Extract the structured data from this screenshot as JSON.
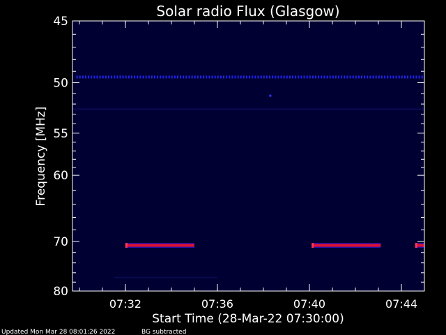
{
  "chart_data": {
    "type": "heatmap",
    "title": "Solar radio Flux (Glasgow)",
    "xlabel": "Start Time (28-Mar-22 07:30:00)",
    "ylabel": "Frequency [MHz]",
    "x_unit": "minutes after 07:00",
    "xlim": [
      29.7,
      45.0
    ],
    "x_ticks": [
      {
        "value": 32,
        "label": "07:32"
      },
      {
        "value": 36,
        "label": "07:36"
      },
      {
        "value": 40,
        "label": "07:40"
      },
      {
        "value": 44,
        "label": "07:44"
      }
    ],
    "x_minor_step": 1,
    "ylim": [
      45,
      80
    ],
    "y_scale": "reciprocal",
    "y_ticks": [
      {
        "value": 45,
        "label": "45"
      },
      {
        "value": 50,
        "label": "50"
      },
      {
        "value": 55,
        "label": "55"
      },
      {
        "value": 60,
        "label": "60"
      },
      {
        "value": 70,
        "label": "70"
      },
      {
        "value": 80,
        "label": "80"
      }
    ],
    "y_minor_ticks": [
      46,
      47,
      48,
      49,
      51,
      52,
      53,
      54,
      56,
      57,
      58,
      59,
      62,
      64,
      66,
      68,
      72,
      74,
      76,
      78
    ],
    "grid": false,
    "background_color": "#000033",
    "frame_color": "#ffffff",
    "features": [
      {
        "name": "rfi-line-49.5",
        "kind": "dotted",
        "freq": 49.5,
        "x_start": 29.9,
        "x_end": 45.0,
        "color": "#2222ee"
      },
      {
        "name": "spot-51.2",
        "kind": "dot",
        "freq": 51.2,
        "x": 38.3,
        "color": "#3333ff"
      },
      {
        "name": "band-70.7-a",
        "kind": "band",
        "freq": 70.7,
        "x_start": 32.0,
        "x_end": 35.0,
        "color": "#dd1133"
      },
      {
        "name": "band-70.7-b",
        "kind": "band",
        "freq": 70.7,
        "x_start": 40.1,
        "x_end": 43.1,
        "color": "#dd1133"
      },
      {
        "name": "band-70.7-c",
        "kind": "band",
        "freq": 70.7,
        "x_start": 44.6,
        "x_end": 45.0,
        "color": "#dd1133"
      },
      {
        "name": "faint-52.5",
        "kind": "faint",
        "freq": 52.5,
        "x_start": 29.7,
        "x_end": 45.0,
        "color": "#0a0a55"
      },
      {
        "name": "faint-77",
        "kind": "faint",
        "freq": 77.0,
        "x_start": 31.5,
        "x_end": 36.0,
        "color": "#0a0a50"
      }
    ]
  },
  "footer": {
    "updated": "Updated Mon Mar 28 08:01:26 2022",
    "note": "BG subtracted"
  }
}
